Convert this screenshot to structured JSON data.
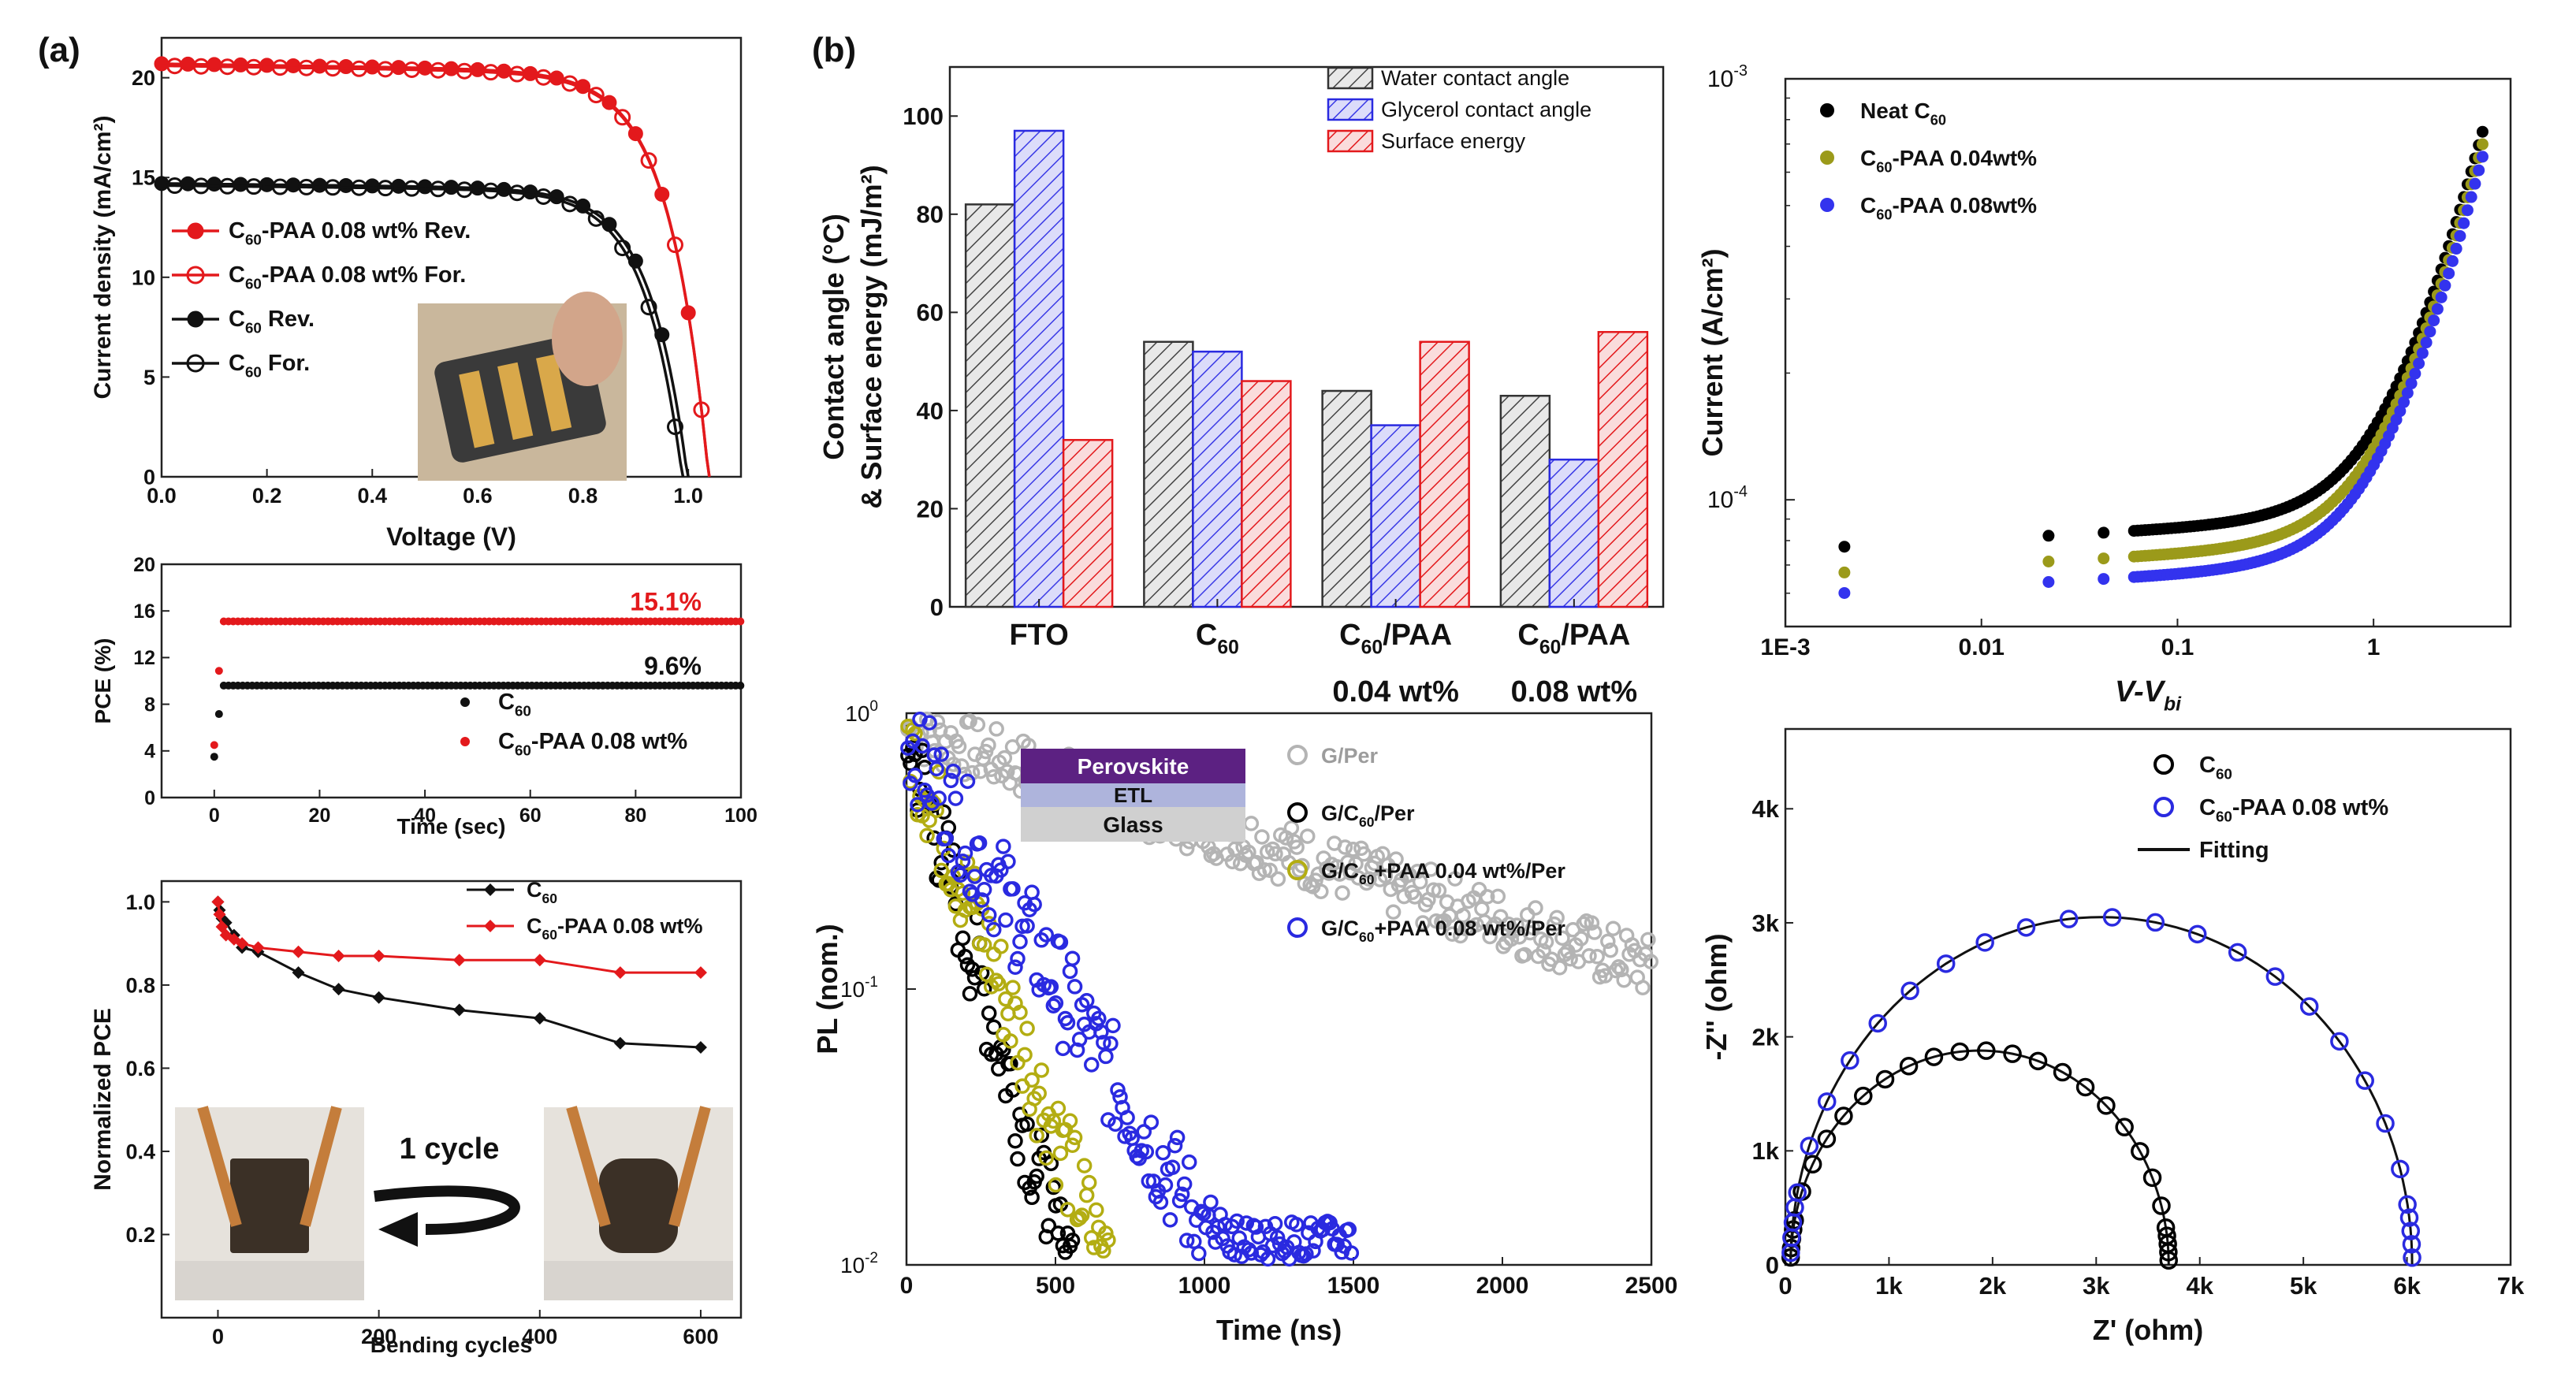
{
  "panel_labels": {
    "a": "(a)",
    "b": "(b)"
  },
  "chart_data": [
    {
      "id": "jv",
      "type": "line",
      "xlabel": "Voltage (V)",
      "ylabel": "Current density (mA/cm²)",
      "xlim": [
        0,
        1.1
      ],
      "ylim": [
        0,
        22
      ],
      "xticks": [
        0.0,
        0.2,
        0.4,
        0.6,
        0.8,
        1.0
      ],
      "xtick_labels": [
        "0.0",
        "0.2",
        "0.4",
        "0.6",
        "0.8",
        "1.0"
      ],
      "yticks": [
        0,
        5,
        10,
        15,
        20
      ],
      "ytick_labels": [
        "0",
        "5",
        "10",
        "15",
        "20"
      ],
      "legend": [
        "C60-PAA 0.08 wt% Rev.",
        "C60-PAA 0.08 wt% For.",
        "C60 Rev.",
        "C60 For."
      ],
      "legend_parts": [
        {
          "base": "C",
          "sub": "60",
          "rest": "-PAA 0.08 wt% Rev."
        },
        {
          "base": "C",
          "sub": "60",
          "rest": "-PAA 0.08 wt% For."
        },
        {
          "base": "C",
          "sub": "60",
          "rest": " Rev."
        },
        {
          "base": "C",
          "sub": "60",
          "rest": " For."
        }
      ],
      "inset": "photo of flexible device",
      "series": [
        {
          "name": "C60-PAA 0.08 wt% Rev.",
          "color": "#e3191c",
          "marker": "filled",
          "Jsc": 20.7,
          "Voc": 1.04
        },
        {
          "name": "C60-PAA 0.08 wt% For.",
          "color": "#e3191c",
          "marker": "open",
          "Jsc": 20.6,
          "Voc": 1.04
        },
        {
          "name": "C60 Rev.",
          "color": "#111111",
          "marker": "filled",
          "Jsc": 14.7,
          "Voc": 1.0
        },
        {
          "name": "C60 For.",
          "color": "#111111",
          "marker": "open",
          "Jsc": 14.6,
          "Voc": 0.99
        }
      ]
    },
    {
      "id": "pce",
      "type": "scatter",
      "xlabel": "Time (sec)",
      "ylabel": "PCE (%)",
      "xlim": [
        -10,
        100
      ],
      "ylim": [
        0,
        20
      ],
      "xticks": [
        0,
        20,
        40,
        60,
        80,
        100
      ],
      "xtick_labels": [
        "0",
        "20",
        "40",
        "60",
        "80",
        "100"
      ],
      "yticks": [
        0,
        4,
        8,
        12,
        16,
        20
      ],
      "ytick_labels": [
        "0",
        "4",
        "8",
        "12",
        "16",
        "20"
      ],
      "annotations": [
        "15.1%",
        "9.6%"
      ],
      "legend": [
        "C60",
        "C60-PAA 0.08 wt%"
      ],
      "legend_parts": [
        {
          "base": "C",
          "sub": "60",
          "rest": ""
        },
        {
          "base": "C",
          "sub": "60",
          "rest": "-PAA 0.08 wt%"
        }
      ],
      "series": [
        {
          "name": "C60",
          "color": "#111111",
          "steady": 9.6,
          "start": 3.5
        },
        {
          "name": "C60-PAA 0.08 wt%",
          "color": "#e3191c",
          "steady": 15.1,
          "start": 4.5
        }
      ]
    },
    {
      "id": "bend",
      "type": "line",
      "xlabel": "Bending cycles",
      "ylabel": "Normalized PCE",
      "xlim": [
        -70,
        650
      ],
      "ylim": [
        0.0,
        1.05
      ],
      "xticks": [
        0,
        200,
        400,
        600
      ],
      "xtick_labels": [
        "0",
        "200",
        "400",
        "600"
      ],
      "yticks": [
        0.2,
        0.4,
        0.6,
        0.8,
        1.0
      ],
      "ytick_labels": [
        "0.2",
        "0.4",
        "0.6",
        "0.8",
        "1.0"
      ],
      "legend": [
        "C60",
        "C60-PAA 0.08 wt%"
      ],
      "legend_parts": [
        {
          "base": "C",
          "sub": "60",
          "rest": ""
        },
        {
          "base": "C",
          "sub": "60",
          "rest": "-PAA 0.08 wt%"
        }
      ],
      "annotation": "1 cycle",
      "series": [
        {
          "name": "C60",
          "color": "#111111",
          "x": [
            0,
            2,
            5,
            10,
            20,
            30,
            50,
            100,
            150,
            200,
            300,
            400,
            500,
            600
          ],
          "y": [
            1.0,
            0.98,
            0.96,
            0.95,
            0.92,
            0.89,
            0.88,
            0.83,
            0.79,
            0.77,
            0.74,
            0.72,
            0.66,
            0.65
          ]
        },
        {
          "name": "C60-PAA 0.08 wt%",
          "color": "#e3191c",
          "x": [
            0,
            2,
            5,
            10,
            20,
            30,
            50,
            100,
            150,
            200,
            300,
            400,
            500,
            600
          ],
          "y": [
            1.0,
            0.97,
            0.94,
            0.92,
            0.91,
            0.9,
            0.89,
            0.88,
            0.87,
            0.87,
            0.86,
            0.86,
            0.83,
            0.83
          ]
        }
      ]
    },
    {
      "id": "contact",
      "type": "bar",
      "ylabel": "Contact angle (°C) & Surface energy (mJ/m²)",
      "ylabel_line1": "Contact angle (°C)",
      "ylabel_line2": "& Surface energy (mJ/m²)",
      "ylim": [
        0,
        110
      ],
      "yticks": [
        0,
        20,
        40,
        60,
        80,
        100
      ],
      "ytick_labels": [
        "0",
        "20",
        "40",
        "60",
        "80",
        "100"
      ],
      "categories": [
        "FTO",
        "C60",
        "C60/PAA 0.04 wt%",
        "C60/PAA 0.08 wt%"
      ],
      "category_parts": [
        {
          "line1": "FTO",
          "sub": "",
          "rest": "",
          "line2": ""
        },
        {
          "line1": "C",
          "sub": "60",
          "rest": "",
          "line2": ""
        },
        {
          "line1": "C",
          "sub": "60",
          "rest": "/PAA",
          "line2": "0.04 wt%"
        },
        {
          "line1": "C",
          "sub": "60",
          "rest": "/PAA",
          "line2": "0.08 wt%"
        }
      ],
      "series": [
        {
          "name": "Water contact angle",
          "color": "#333333",
          "values": [
            82,
            54,
            44,
            43
          ]
        },
        {
          "name": "Glycerol contact angle",
          "color": "#2a2ae0",
          "values": [
            97,
            52,
            37,
            30
          ]
        },
        {
          "name": "Surface energy",
          "color": "#e3191c",
          "values": [
            34,
            46,
            54,
            56
          ]
        }
      ]
    },
    {
      "id": "sclc",
      "type": "scatter",
      "xlabel": "V-V",
      "xlabel_sub": "bi",
      "ylabel": "Current (A/cm²)",
      "xscale": "log",
      "yscale": "log",
      "xlim": [
        0.001,
        5
      ],
      "ylim": [
        5e-05,
        0.001
      ],
      "xtick_labels": [
        "1E-3",
        "0.01",
        "0.1",
        "1"
      ],
      "ytick_top": "10",
      "ytick_top_exp": "-3",
      "ytick_mid": "10",
      "ytick_mid_exp": "-4",
      "legend": [
        "Neat C60",
        "C60-PAA 0.04wt%",
        "C60-PAA 0.08wt%"
      ],
      "legend_parts": [
        {
          "base": "Neat C",
          "sub": "60",
          "rest": ""
        },
        {
          "base": "C",
          "sub": "60",
          "rest": "-PAA 0.04wt%"
        },
        {
          "base": "C",
          "sub": "60",
          "rest": "-PAA 0.08wt%"
        }
      ],
      "series": [
        {
          "name": "Neat C60",
          "color": "#000000",
          "a": 7.6e-05,
          "b": 0.00068
        },
        {
          "name": "C60-PAA 0.04wt%",
          "color": "#9b9a1a",
          "a": 6.6e-05,
          "b": 0.00064
        },
        {
          "name": "C60-PAA 0.08wt%",
          "color": "#3333ee",
          "a": 5.9e-05,
          "b": 0.0006
        }
      ]
    },
    {
      "id": "pl",
      "type": "scatter",
      "xlabel": "Time (ns)",
      "ylabel": "PL (nom.)",
      "yscale": "log",
      "xlim": [
        0,
        2500
      ],
      "ylim": [
        0.01,
        1
      ],
      "xticks": [
        0,
        500,
        1000,
        1500,
        2000,
        2500
      ],
      "xtick_labels": [
        "0",
        "500",
        "1000",
        "1500",
        "2000",
        "2500"
      ],
      "ytick_exps": [
        "0",
        "-1",
        "-2"
      ],
      "inset_layers": [
        "Perovskite",
        "ETL",
        "Glass"
      ],
      "legend": [
        "G/Per",
        "G/C60/Per",
        "G/C60+PAA 0.04 wt%/Per",
        "G/C60+PAA 0.08 wt%/Per"
      ],
      "legend_parts": [
        {
          "base": "G/Per",
          "sub": "",
          "rest": ""
        },
        {
          "base": "G/C",
          "sub": "60",
          "rest": "/Per"
        },
        {
          "base": "G/C",
          "sub": "60",
          "rest": "+PAA 0.04 wt%/Per"
        },
        {
          "base": "G/C",
          "sub": "60",
          "rest": "+PAA 0.08 wt%/Per"
        }
      ],
      "series": [
        {
          "name": "G/Per",
          "color": "#b4b4b4",
          "tau": 1200,
          "end": 2500
        },
        {
          "name": "G/C60/Per",
          "color": "#000000",
          "tau": 120,
          "end": 560
        },
        {
          "name": "G/C60+PAA 0.04 wt%/Per",
          "color": "#b3ad12",
          "tau": 150,
          "end": 680
        },
        {
          "name": "G/C60+PAA 0.08 wt%/Per",
          "color": "#2a2ae0",
          "tau": 240,
          "end": 1500
        }
      ]
    },
    {
      "id": "eis",
      "type": "scatter",
      "xlabel": "Z' (ohm)",
      "ylabel": "-Z'' (ohm)",
      "xlim": [
        0,
        7000
      ],
      "ylim": [
        0,
        4700
      ],
      "xtick_labels": [
        "0",
        "1k",
        "2k",
        "3k",
        "4k",
        "5k",
        "6k",
        "7k"
      ],
      "ytick_labels": [
        "0",
        "1k",
        "2k",
        "3k",
        "4k"
      ],
      "legend": [
        "C60",
        "C60-PAA 0.08 wt%",
        "Fitting"
      ],
      "legend_parts": [
        {
          "base": "C",
          "sub": "60",
          "rest": ""
        },
        {
          "base": "C",
          "sub": "60",
          "rest": "-PAA 0.08 wt%"
        },
        {
          "base": "Fitting",
          "sub": "",
          "rest": ""
        }
      ],
      "series": [
        {
          "name": "C60",
          "color": "#000000",
          "R0": 50,
          "R1": 3700,
          "peak": 1880
        },
        {
          "name": "C60-PAA 0.08 wt%",
          "color": "#2a2ae0",
          "R0": 50,
          "R1": 6050,
          "peak": 3050
        }
      ]
    }
  ]
}
